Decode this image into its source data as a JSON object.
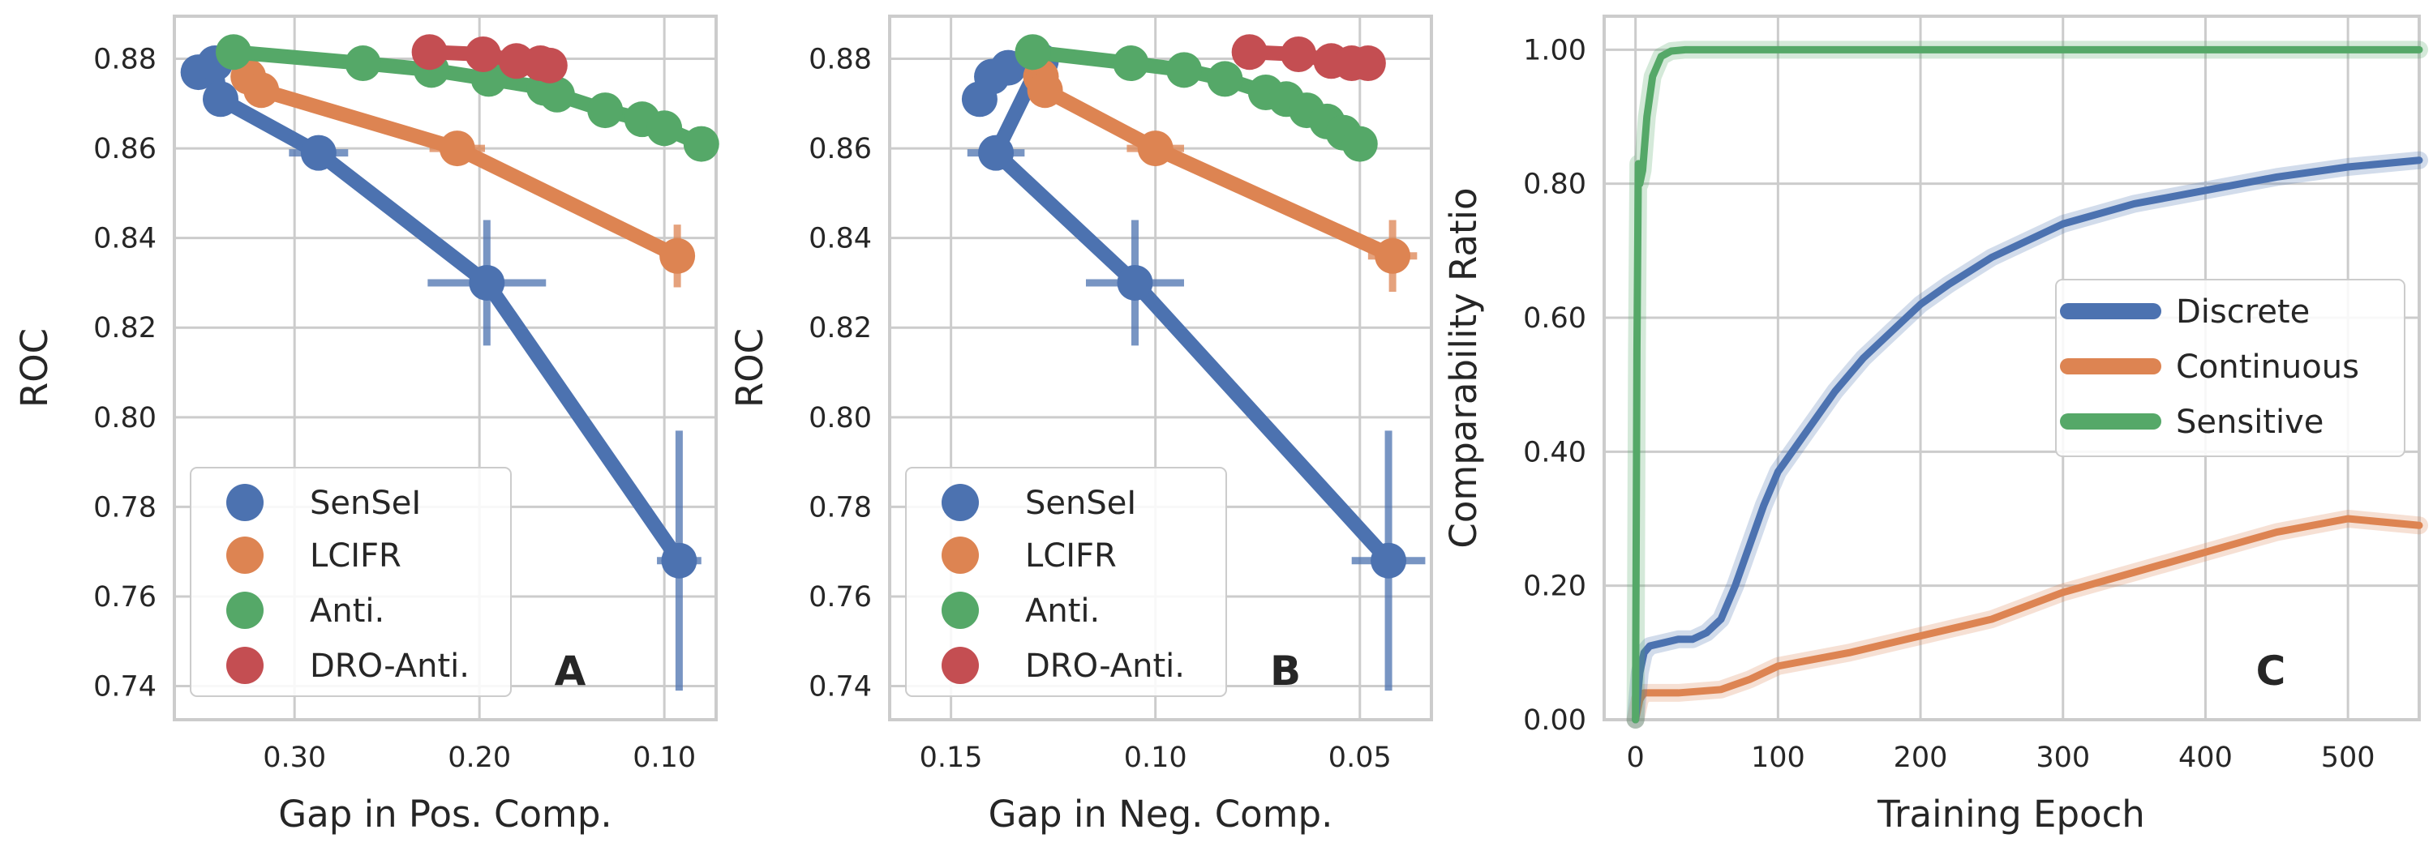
{
  "colors": {
    "blue": "#4c72b0",
    "orange": "#dd8452",
    "green": "#55a868",
    "red": "#c44e52",
    "grid": "#cccccc",
    "spine": "#cccccc"
  },
  "chart_data": [
    {
      "type": "scatter",
      "panel": "A",
      "xlabel": "Gap in Pos. Comp.",
      "ylabel": "ROC",
      "xlim": [
        0.365,
        0.072
      ],
      "ylim": [
        0.7325,
        0.8895
      ],
      "xticks": [
        0.3,
        0.2,
        0.1
      ],
      "xtick_labels": [
        "0.30",
        "0.20",
        "0.10"
      ],
      "yticks": [
        0.74,
        0.76,
        0.78,
        0.8,
        0.82,
        0.84,
        0.86,
        0.88
      ],
      "ytick_labels": [
        "0.74",
        "0.76",
        "0.78",
        "0.80",
        "0.82",
        "0.84",
        "0.86",
        "0.88"
      ],
      "legend": {
        "location": "lower-left",
        "entries": [
          "SenSeI",
          "LCIFR",
          "Anti.",
          "DRO-Anti."
        ]
      },
      "series": [
        {
          "name": "SenSeI",
          "color": "blue",
          "points": [
            {
              "x": 0.352,
              "y": 0.877
            },
            {
              "x": 0.343,
              "y": 0.879
            },
            {
              "x": 0.34,
              "y": 0.871
            },
            {
              "x": 0.287,
              "y": 0.859,
              "xerr": 0.016,
              "yerr": 0.001
            },
            {
              "x": 0.196,
              "y": 0.83,
              "xerr": 0.032,
              "yerr": 0.014
            },
            {
              "x": 0.092,
              "y": 0.768,
              "xerr": 0.012,
              "yerr": 0.029
            }
          ]
        },
        {
          "name": "LCIFR",
          "color": "orange",
          "points": [
            {
              "x": 0.325,
              "y": 0.876
            },
            {
              "x": 0.318,
              "y": 0.873
            },
            {
              "x": 0.212,
              "y": 0.86,
              "xerr": 0.015,
              "yerr": 0.002
            },
            {
              "x": 0.093,
              "y": 0.836,
              "xerr": 0.007,
              "yerr": 0.007
            }
          ]
        },
        {
          "name": "Anti.",
          "color": "green",
          "points": [
            {
              "x": 0.333,
              "y": 0.8815
            },
            {
              "x": 0.263,
              "y": 0.879
            },
            {
              "x": 0.226,
              "y": 0.8775
            },
            {
              "x": 0.195,
              "y": 0.8755
            },
            {
              "x": 0.165,
              "y": 0.8735
            },
            {
              "x": 0.158,
              "y": 0.872
            },
            {
              "x": 0.132,
              "y": 0.8685
            },
            {
              "x": 0.112,
              "y": 0.8665
            },
            {
              "x": 0.1,
              "y": 0.8645
            },
            {
              "x": 0.08,
              "y": 0.861
            }
          ]
        },
        {
          "name": "DRO-Anti.",
          "color": "red",
          "points": [
            {
              "x": 0.227,
              "y": 0.8815
            },
            {
              "x": 0.198,
              "y": 0.881
            },
            {
              "x": 0.18,
              "y": 0.8795
            },
            {
              "x": 0.167,
              "y": 0.879
            },
            {
              "x": 0.162,
              "y": 0.8785
            }
          ]
        }
      ]
    },
    {
      "type": "scatter",
      "panel": "B",
      "xlabel": "Gap in Neg. Comp.",
      "ylabel": "ROC",
      "xlim": [
        0.165,
        0.0325
      ],
      "ylim": [
        0.7325,
        0.8895
      ],
      "xticks": [
        0.15,
        0.1,
        0.05
      ],
      "xtick_labels": [
        "0.15",
        "0.10",
        "0.05"
      ],
      "yticks": [
        0.74,
        0.76,
        0.78,
        0.8,
        0.82,
        0.84,
        0.86,
        0.88
      ],
      "ytick_labels": [
        "0.74",
        "0.76",
        "0.78",
        "0.80",
        "0.82",
        "0.84",
        "0.86",
        "0.88"
      ],
      "legend": {
        "location": "lower-left",
        "entries": [
          "SenSeI",
          "LCIFR",
          "Anti.",
          "DRO-Anti."
        ]
      },
      "series": [
        {
          "name": "SenSeI",
          "color": "blue",
          "points": [
            {
              "x": 0.143,
              "y": 0.871
            },
            {
              "x": 0.14,
              "y": 0.876
            },
            {
              "x": 0.136,
              "y": 0.878
            },
            {
              "x": 0.128,
              "y": 0.8795
            },
            {
              "x": 0.139,
              "y": 0.859,
              "xerr": 0.007,
              "yerr": 0.001
            },
            {
              "x": 0.105,
              "y": 0.83,
              "xerr": 0.012,
              "yerr": 0.014
            },
            {
              "x": 0.043,
              "y": 0.768,
              "xerr": 0.009,
              "yerr": 0.029
            }
          ]
        },
        {
          "name": "LCIFR",
          "color": "orange",
          "points": [
            {
              "x": 0.128,
              "y": 0.876
            },
            {
              "x": 0.127,
              "y": 0.873
            },
            {
              "x": 0.1,
              "y": 0.86,
              "xerr": 0.007,
              "yerr": 0.002
            },
            {
              "x": 0.042,
              "y": 0.836,
              "xerr": 0.006,
              "yerr": 0.008
            }
          ]
        },
        {
          "name": "Anti.",
          "color": "green",
          "points": [
            {
              "x": 0.13,
              "y": 0.8815
            },
            {
              "x": 0.106,
              "y": 0.879
            },
            {
              "x": 0.093,
              "y": 0.8775
            },
            {
              "x": 0.083,
              "y": 0.8755
            },
            {
              "x": 0.073,
              "y": 0.8725
            },
            {
              "x": 0.068,
              "y": 0.871
            },
            {
              "x": 0.063,
              "y": 0.8685
            },
            {
              "x": 0.058,
              "y": 0.866
            },
            {
              "x": 0.054,
              "y": 0.8635
            },
            {
              "x": 0.05,
              "y": 0.861
            }
          ]
        },
        {
          "name": "DRO-Anti.",
          "color": "red",
          "points": [
            {
              "x": 0.077,
              "y": 0.8815
            },
            {
              "x": 0.065,
              "y": 0.881
            },
            {
              "x": 0.057,
              "y": 0.8795
            },
            {
              "x": 0.052,
              "y": 0.879
            },
            {
              "x": 0.048,
              "y": 0.879
            }
          ]
        }
      ]
    },
    {
      "type": "line",
      "panel": "C",
      "xlabel": "Training Epoch",
      "ylabel": "Comparability Ratio",
      "xlim": [
        -22,
        550
      ],
      "ylim": [
        0,
        1.05
      ],
      "xticks": [
        0,
        100,
        200,
        300,
        400,
        500
      ],
      "xtick_labels": [
        "0",
        "100",
        "200",
        "300",
        "400",
        "500"
      ],
      "yticks": [
        0,
        0.2,
        0.4,
        0.6,
        0.8,
        1.0
      ],
      "ytick_labels": [
        "0.00",
        "0.20",
        "0.40",
        "0.60",
        "0.80",
        "1.00"
      ],
      "legend": {
        "location": "center-right",
        "entries": [
          "Discrete",
          "Continuous",
          "Sensitive"
        ]
      },
      "series": [
        {
          "name": "Discrete",
          "color": "blue",
          "x": [
            0,
            3,
            6,
            10,
            20,
            30,
            40,
            50,
            60,
            70,
            80,
            90,
            100,
            120,
            140,
            160,
            180,
            200,
            220,
            250,
            280,
            300,
            350,
            400,
            450,
            500,
            550
          ],
          "y": [
            0,
            0.07,
            0.1,
            0.11,
            0.115,
            0.12,
            0.12,
            0.13,
            0.15,
            0.2,
            0.26,
            0.32,
            0.37,
            0.43,
            0.49,
            0.54,
            0.58,
            0.62,
            0.65,
            0.69,
            0.72,
            0.74,
            0.77,
            0.79,
            0.81,
            0.825,
            0.835
          ]
        },
        {
          "name": "Continuous",
          "color": "orange",
          "x": [
            0,
            3,
            6,
            10,
            30,
            60,
            80,
            100,
            150,
            200,
            250,
            300,
            350,
            400,
            450,
            500,
            550
          ],
          "y": [
            0,
            0.03,
            0.04,
            0.04,
            0.04,
            0.045,
            0.06,
            0.08,
            0.1,
            0.125,
            0.15,
            0.19,
            0.22,
            0.25,
            0.28,
            0.3,
            0.29
          ]
        },
        {
          "name": "Sensitive",
          "color": "green",
          "x": [
            0,
            1,
            2,
            3,
            5,
            8,
            12,
            18,
            25,
            35,
            50,
            100,
            200,
            300,
            400,
            500,
            550
          ],
          "y": [
            0,
            0.55,
            0.83,
            0.8,
            0.82,
            0.9,
            0.96,
            0.99,
            0.998,
            1.0,
            1.0,
            1.0,
            1.0,
            1.0,
            1.0,
            1.0,
            1.0
          ]
        }
      ]
    }
  ]
}
